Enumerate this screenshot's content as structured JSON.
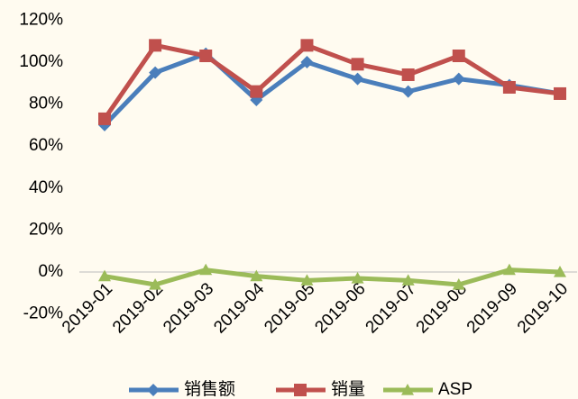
{
  "chart_data": {
    "type": "line",
    "categories": [
      "2019-01",
      "2019-02",
      "2019-03",
      "2019-04",
      "2019-05",
      "2019-06",
      "2019-07",
      "2019-08",
      "2019-09",
      "2019-10"
    ],
    "series": [
      {
        "name": "销售额",
        "color": "#4a7ebb",
        "marker": "diamond",
        "values": [
          70,
          95,
          104,
          82,
          100,
          92,
          86,
          92,
          89,
          85
        ]
      },
      {
        "name": "销量",
        "color": "#c0504d",
        "marker": "square",
        "values": [
          73,
          108,
          103,
          86,
          108,
          99,
          94,
          103,
          88,
          85
        ]
      },
      {
        "name": "ASP",
        "color": "#9bbb59",
        "marker": "triangle",
        "values": [
          -2,
          -6,
          1,
          -2,
          -4,
          -3,
          -4,
          -6,
          1,
          0
        ]
      }
    ],
    "ylim": [
      -20,
      120
    ],
    "yticks": [
      {
        "value": -20,
        "label": "-20%"
      },
      {
        "value": 0,
        "label": "0%"
      },
      {
        "value": 20,
        "label": "20%"
      },
      {
        "value": 40,
        "label": "40%"
      },
      {
        "value": 60,
        "label": "60%"
      },
      {
        "value": 80,
        "label": "80%"
      },
      {
        "value": 100,
        "label": "100%"
      },
      {
        "value": 120,
        "label": "120%"
      }
    ],
    "grid": false,
    "legend": "bottom"
  }
}
